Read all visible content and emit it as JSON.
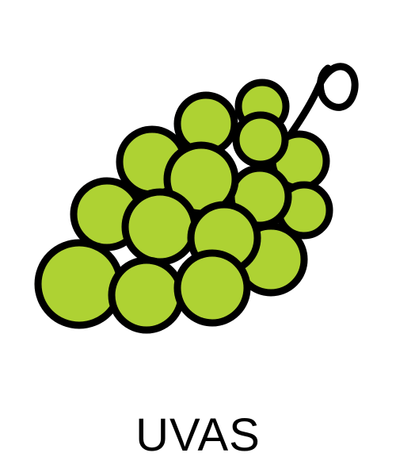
{
  "card": {
    "label": "UVAS",
    "icon": "grapes-icon"
  },
  "colors": {
    "grape_fill": "#aed233",
    "outline": "#000000",
    "background": "#ffffff",
    "text": "#000000"
  }
}
